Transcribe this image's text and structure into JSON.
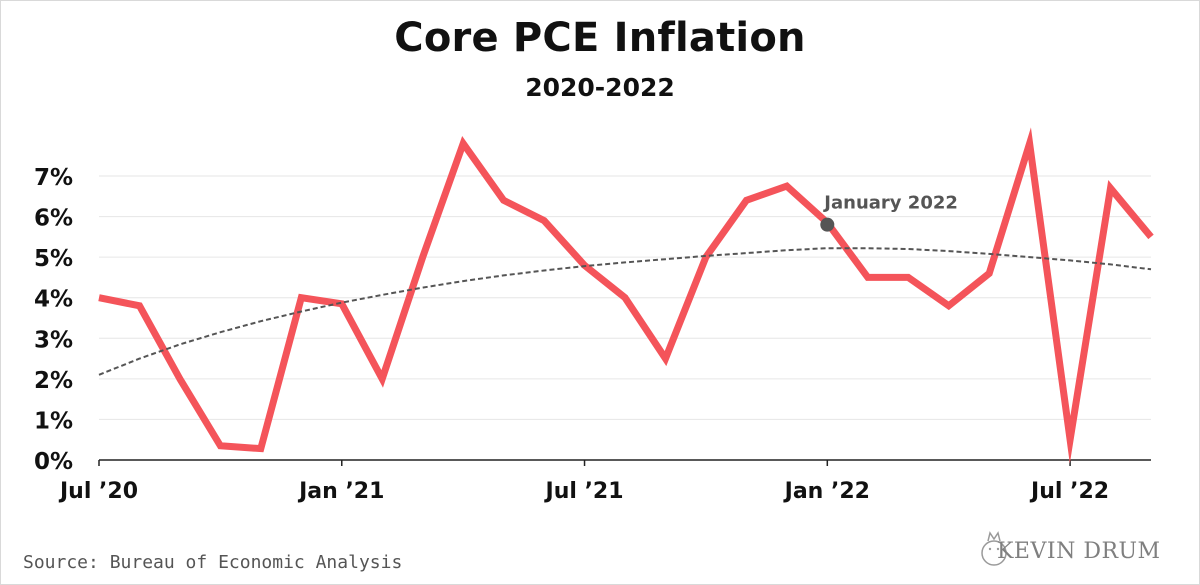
{
  "chart_data": {
    "type": "line",
    "title": "Core PCE Inflation",
    "subtitle": "2020-2022",
    "xlabel": "",
    "ylabel": "",
    "x_tick_labels": [
      "Jul ’20",
      "Jan ’21",
      "Jul ’21",
      "Jan ’22",
      "Jul ’22"
    ],
    "y_tick_labels": [
      "0%",
      "1%",
      "2%",
      "3%",
      "4%",
      "5%",
      "6%",
      "7%"
    ],
    "ylim": [
      0,
      7
    ],
    "x": [
      "2020-07",
      "2020-08",
      "2020-09",
      "2020-10",
      "2020-11",
      "2020-12",
      "2021-01",
      "2021-02",
      "2021-03",
      "2021-04",
      "2021-05",
      "2021-06",
      "2021-07",
      "2021-08",
      "2021-09",
      "2021-10",
      "2021-11",
      "2021-12",
      "2022-01",
      "2022-02",
      "2022-03",
      "2022-04",
      "2022-05",
      "2022-06",
      "2022-07",
      "2022-08",
      "2022-09"
    ],
    "series": [
      {
        "name": "",
        "color": "#f4545a",
        "values": [
          4.0,
          3.8,
          2.0,
          0.35,
          0.28,
          4.0,
          3.85,
          2.0,
          5.0,
          7.8,
          6.4,
          5.9,
          4.8,
          4.0,
          2.5,
          5.0,
          6.4,
          6.75,
          5.85,
          4.5,
          4.5,
          3.8,
          4.6,
          7.8,
          0.5,
          6.7,
          5.5
        ]
      }
    ],
    "trendline": {
      "style": "dashed",
      "color": "#555555",
      "values": [
        2.1,
        2.5,
        2.85,
        3.15,
        3.42,
        3.66,
        3.88,
        4.07,
        4.25,
        4.41,
        4.55,
        4.67,
        4.78,
        4.87,
        4.95,
        5.03,
        5.1,
        5.17,
        5.22,
        5.22,
        5.2,
        5.15,
        5.08,
        5.0,
        4.92,
        4.82,
        4.7
      ]
    },
    "annotations": [
      {
        "x": "2022-01",
        "y": 5.8,
        "label": "January 2022",
        "color": "#555555"
      }
    ],
    "grid": true,
    "legend": "none"
  },
  "footer": {
    "source": "Source: Bureau of Economic Analysis",
    "brand": "KEVIN DRUM"
  }
}
